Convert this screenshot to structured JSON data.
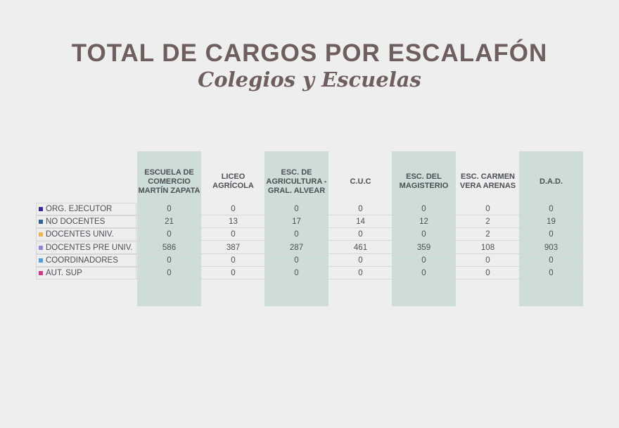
{
  "title": "TOTAL DE CARGOS POR ESCALAFÓN",
  "subtitle": "Colegios y Escuelas",
  "chart_data": {
    "type": "table",
    "columns": [
      "ESCUELA DE COMERCIO MARTÍN ZAPATA",
      "LICEO AGRÍCOLA",
      "ESC. DE AGRICULTURA - GRAL. ALVEAR",
      "C.U.C",
      "ESC. DEL MAGISTERIO",
      "ESC. CARMEN VERA ARENAS",
      "D.A.D."
    ],
    "rows": [
      {
        "label": "ORG. EJECUTOR",
        "color": "#3b2a9e",
        "values": [
          0,
          0,
          0,
          0,
          0,
          0,
          0
        ]
      },
      {
        "label": "NO DOCENTES",
        "color": "#2f5f9e",
        "values": [
          21,
          13,
          17,
          14,
          12,
          2,
          19
        ]
      },
      {
        "label": "DOCENTES UNIV.",
        "color": "#f3b24a",
        "values": [
          0,
          0,
          0,
          0,
          0,
          2,
          0
        ]
      },
      {
        "label": "DOCENTES PRE UNIV.",
        "color": "#9b7fd8",
        "values": [
          586,
          387,
          287,
          461,
          359,
          108,
          903
        ]
      },
      {
        "label": "COORDINADORES",
        "color": "#4aa3df",
        "values": [
          0,
          0,
          0,
          0,
          0,
          0,
          0
        ]
      },
      {
        "label": "AUT. SUP",
        "color": "#e0338a",
        "values": [
          0,
          0,
          0,
          0,
          0,
          0,
          0
        ]
      }
    ],
    "highlighted_columns": [
      0,
      2,
      4,
      6
    ],
    "highlight_color": "#cfddd8"
  }
}
